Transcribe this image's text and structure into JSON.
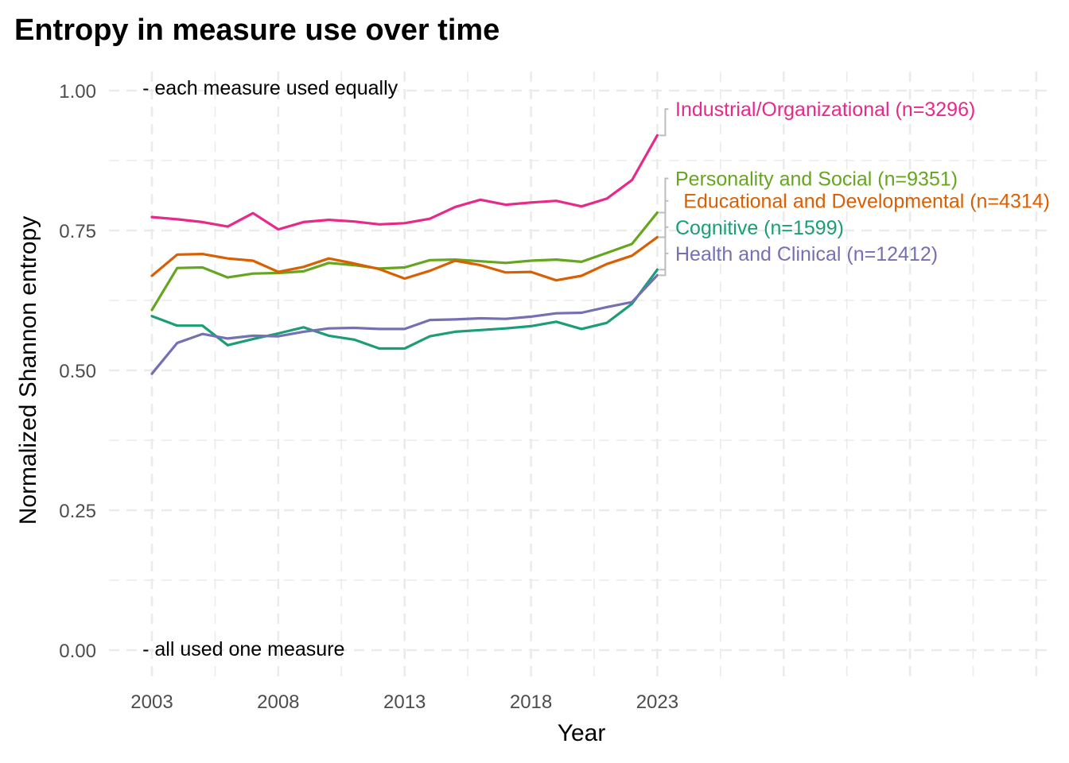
{
  "chart_data": {
    "type": "line",
    "title": "Entropy in measure use over time",
    "xlabel": "Year",
    "ylabel": "Normalized Shannon entropy",
    "xlim": [
      2002.4,
      2038.8
    ],
    "ylim": [
      -0.04,
      1.05
    ],
    "xticks": [
      2003,
      2008,
      2013,
      2018,
      2023
    ],
    "xtick_labels": [
      "2003",
      "2008",
      "2013",
      "2018",
      "2023"
    ],
    "yticks": [
      0,
      0.25,
      0.5,
      0.75,
      1.0
    ],
    "ytick_labels": [
      "0.00",
      "0.25",
      "0.50",
      "0.75",
      "1.00"
    ],
    "grid": "dashed, major and minor",
    "legend": "direct labels at right end of lines",
    "annotations": [
      {
        "text": "- each measure used equally",
        "x": 2002.5,
        "y": 1.0
      },
      {
        "text": "- all used one measure",
        "x": 2002.5,
        "y": 0.0
      }
    ],
    "x": [
      2003,
      2004,
      2005,
      2006,
      2007,
      2008,
      2009,
      2010,
      2011,
      2012,
      2013,
      2014,
      2015,
      2016,
      2017,
      2018,
      2019,
      2020,
      2021,
      2022,
      2023
    ],
    "series": [
      {
        "name": "Industrial/Organizational",
        "label": "Industrial/Organizational (n=3296)",
        "color": "#e7298a",
        "label_y": 0.967,
        "values": [
          0.774,
          0.77,
          0.765,
          0.757,
          0.781,
          0.752,
          0.765,
          0.769,
          0.766,
          0.761,
          0.763,
          0.771,
          0.792,
          0.805,
          0.796,
          0.8,
          0.803,
          0.793,
          0.807,
          0.84,
          0.92
        ]
      },
      {
        "name": "Personality and Social",
        "label": "Personality and Social (n=9351)",
        "color": "#66a61e",
        "label_y": 0.843,
        "values": [
          0.608,
          0.683,
          0.684,
          0.666,
          0.673,
          0.674,
          0.677,
          0.692,
          0.688,
          0.682,
          0.684,
          0.697,
          0.698,
          0.695,
          0.692,
          0.696,
          0.698,
          0.694,
          0.71,
          0.726,
          0.782
        ]
      },
      {
        "name": "Educational and Developmental",
        "label": "Educational and Developmental (n=4314)",
        "color": "#d95f02",
        "label_y": 0.803,
        "values": [
          0.669,
          0.707,
          0.708,
          0.7,
          0.696,
          0.676,
          0.685,
          0.7,
          0.691,
          0.681,
          0.664,
          0.678,
          0.696,
          0.688,
          0.675,
          0.676,
          0.661,
          0.669,
          0.69,
          0.705,
          0.738
        ]
      },
      {
        "name": "Cognitive",
        "label": "Cognitive (n=1599)",
        "color": "#1b9e77",
        "label_y": 0.756,
        "values": [
          0.597,
          0.58,
          0.58,
          0.545,
          0.556,
          0.566,
          0.577,
          0.562,
          0.555,
          0.539,
          0.539,
          0.561,
          0.569,
          0.572,
          0.575,
          0.579,
          0.587,
          0.574,
          0.585,
          0.619,
          0.68
        ]
      },
      {
        "name": "Health and Clinical",
        "label": "Health and Clinical (n=12412)",
        "color": "#7570b3",
        "label_y": 0.709,
        "values": [
          0.494,
          0.549,
          0.565,
          0.557,
          0.562,
          0.561,
          0.569,
          0.575,
          0.576,
          0.574,
          0.574,
          0.59,
          0.591,
          0.593,
          0.592,
          0.596,
          0.602,
          0.603,
          0.613,
          0.622,
          0.67
        ]
      }
    ]
  }
}
